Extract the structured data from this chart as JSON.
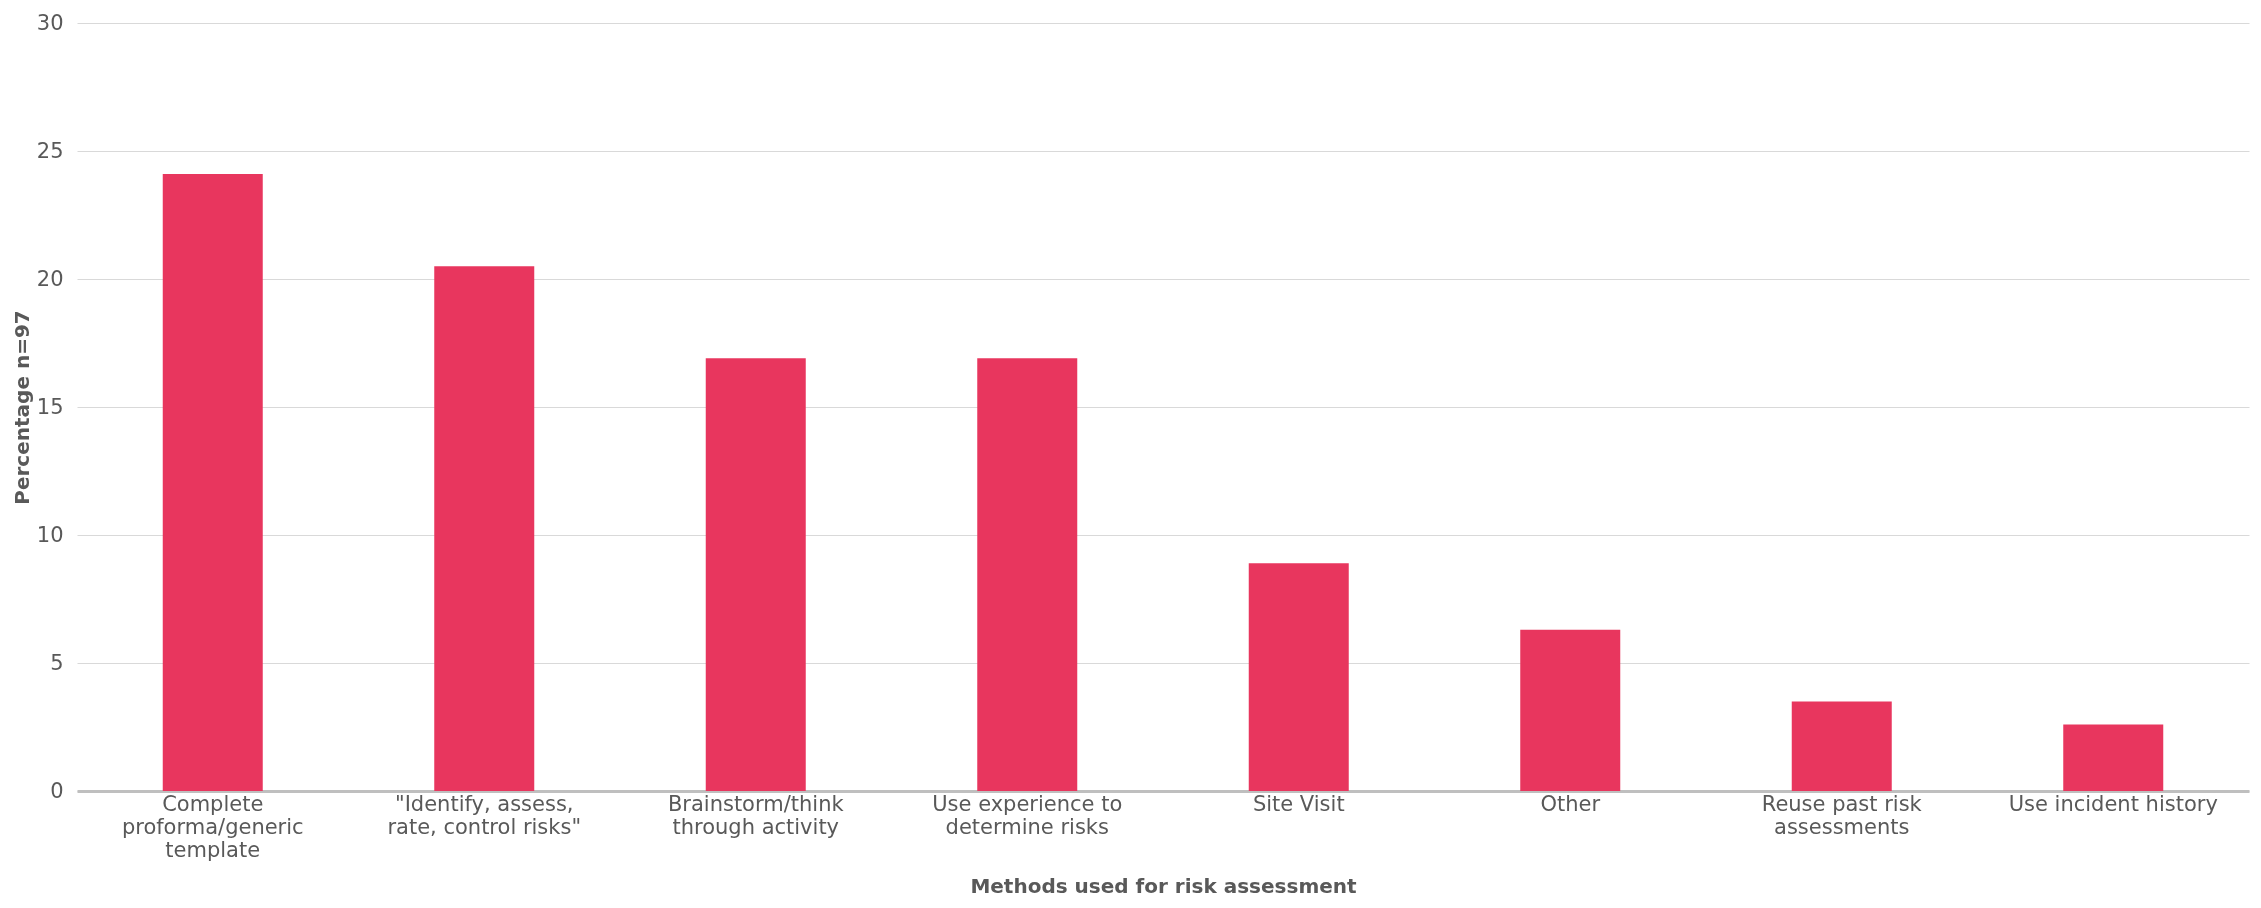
{
  "chart_data": {
    "type": "bar",
    "xlabel": "Methods used for risk assessment",
    "ylabel": "Percentage n=97",
    "categories": [
      "Complete proforma/generic template",
      "\"Identify, assess, rate, control risks\"",
      "Brainstorm/think through activity",
      "Use experience to determine risks",
      "Site Visit",
      "Other",
      "Reuse past risk assessments",
      "Use incident history"
    ],
    "values": [
      24.1,
      20.5,
      16.9,
      16.9,
      8.9,
      6.3,
      3.5,
      2.6
    ],
    "color": "#e8365e",
    "ylim": [
      0,
      30
    ],
    "yticks": [
      0,
      5,
      10,
      15,
      20,
      25,
      30
    ],
    "grid": "y"
  }
}
